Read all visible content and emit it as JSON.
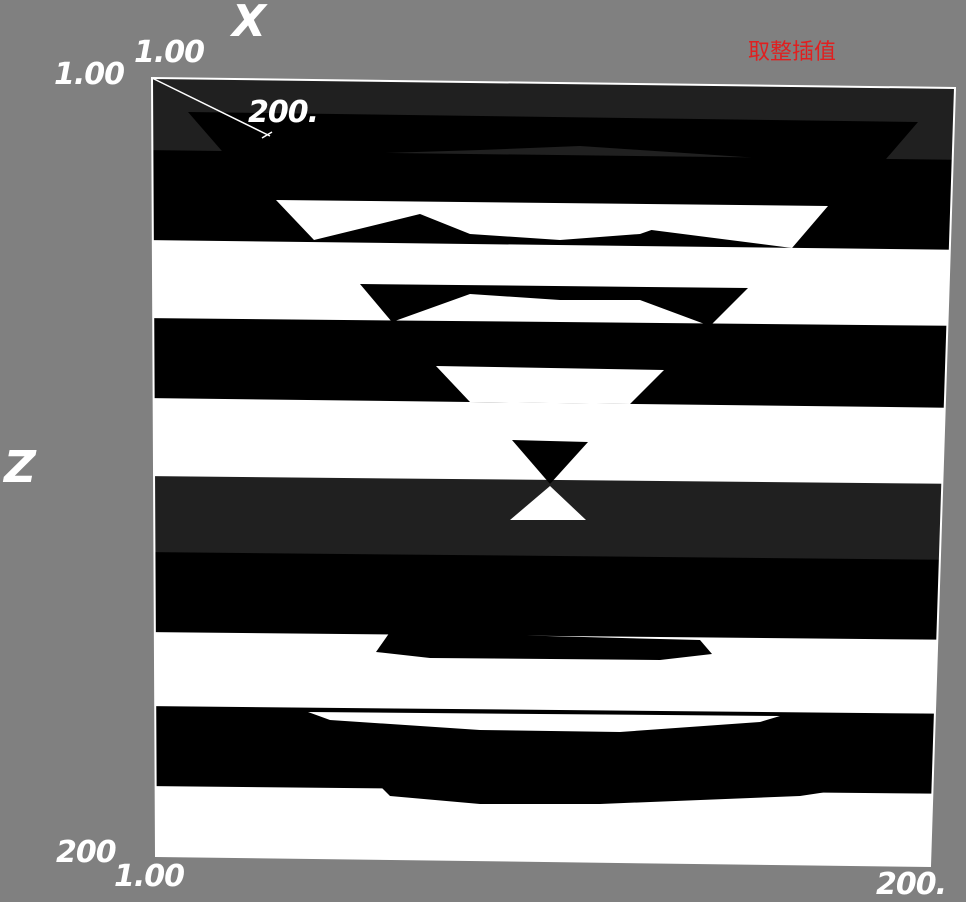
{
  "title": {
    "text": "取整插值",
    "color": "#e02020"
  },
  "axes": {
    "x_name": "X",
    "z_name": "Z",
    "x_start": "1.00",
    "x_end": "200.",
    "z_start": "1.00",
    "z_end": "200",
    "y_start": "1.00",
    "y_end": "200.",
    "origin_bottom": "1.00"
  },
  "colors": {
    "background": "#808080",
    "white": "#ffffff",
    "black": "#000000",
    "dark_gray": "#202020"
  }
}
